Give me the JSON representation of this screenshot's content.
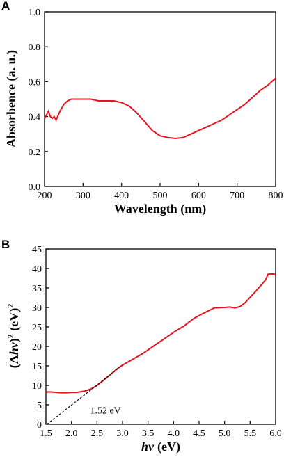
{
  "chart_data": [
    {
      "panel": "A",
      "type": "line",
      "xlabel": "Wavelength (nm)",
      "ylabel": "Absorbence (a. u.)",
      "xlim": [
        200,
        800
      ],
      "ylim": [
        0.0,
        1.0
      ],
      "xticks": [
        "200",
        "300",
        "400",
        "500",
        "600",
        "700",
        "800"
      ],
      "yticks": [
        "0.0",
        "0.2",
        "0.4",
        "0.6",
        "0.8",
        "1.0"
      ],
      "grid": false,
      "line_color": "#e8141c",
      "series": [
        {
          "x": [
            200,
            205,
            210,
            215,
            220,
            225,
            230,
            240,
            250,
            260,
            270,
            280,
            290,
            300,
            310,
            320,
            330,
            340,
            350,
            360,
            380,
            400,
            420,
            440,
            460,
            480,
            500,
            520,
            540,
            560,
            580,
            600,
            620,
            640,
            660,
            680,
            700,
            720,
            740,
            760,
            780,
            800
          ],
          "values": [
            0.39,
            0.41,
            0.43,
            0.4,
            0.39,
            0.4,
            0.38,
            0.43,
            0.47,
            0.49,
            0.5,
            0.5,
            0.5,
            0.5,
            0.5,
            0.5,
            0.495,
            0.49,
            0.49,
            0.49,
            0.49,
            0.48,
            0.46,
            0.42,
            0.37,
            0.32,
            0.29,
            0.28,
            0.275,
            0.28,
            0.3,
            0.32,
            0.34,
            0.36,
            0.38,
            0.41,
            0.44,
            0.47,
            0.51,
            0.55,
            0.58,
            0.62
          ]
        }
      ]
    },
    {
      "panel": "B",
      "type": "line",
      "xlabel_main": "hv",
      "xlabel_unit": "(eV)",
      "ylabel_parts": [
        "(A",
        "hv",
        ")",
        "2",
        " (eV)",
        "2"
      ],
      "xlim": [
        1.5,
        6.0
      ],
      "ylim": [
        0,
        45
      ],
      "xticks": [
        "1.5",
        "2.0",
        "2.5",
        "3.0",
        "3.5",
        "4.0",
        "4.5",
        "5.0",
        "5.5",
        "6.0"
      ],
      "yticks": [
        "0",
        "5",
        "10",
        "15",
        "20",
        "25",
        "30",
        "35",
        "40",
        "45"
      ],
      "grid": false,
      "line_color": "#e8141c",
      "series": [
        {
          "x": [
            1.5,
            1.6,
            1.7,
            1.8,
            1.9,
            2.0,
            2.1,
            2.2,
            2.3,
            2.4,
            2.5,
            2.6,
            2.7,
            2.8,
            2.9,
            3.0,
            3.2,
            3.4,
            3.6,
            3.8,
            4.0,
            4.2,
            4.4,
            4.6,
            4.8,
            5.0,
            5.1,
            5.2,
            5.3,
            5.4,
            5.5,
            5.6,
            5.7,
            5.8,
            5.85,
            5.9,
            6.0
          ],
          "values": [
            8.3,
            8.3,
            8.2,
            8.1,
            8.1,
            8.2,
            8.2,
            8.4,
            8.7,
            9.2,
            10.0,
            11.0,
            12.1,
            13.2,
            14.3,
            15.2,
            16.7,
            18.2,
            20.0,
            21.8,
            23.6,
            25.2,
            27.2,
            28.6,
            29.9,
            30.0,
            30.1,
            29.9,
            30.2,
            31.2,
            32.6,
            34.0,
            35.5,
            37.0,
            38.5,
            38.6,
            38.5
          ]
        }
      ],
      "annotation": {
        "text": "1.52 eV",
        "tangent_from": [
          1.52,
          0
        ],
        "tangent_to": [
          3.0,
          15.2
        ]
      }
    }
  ]
}
